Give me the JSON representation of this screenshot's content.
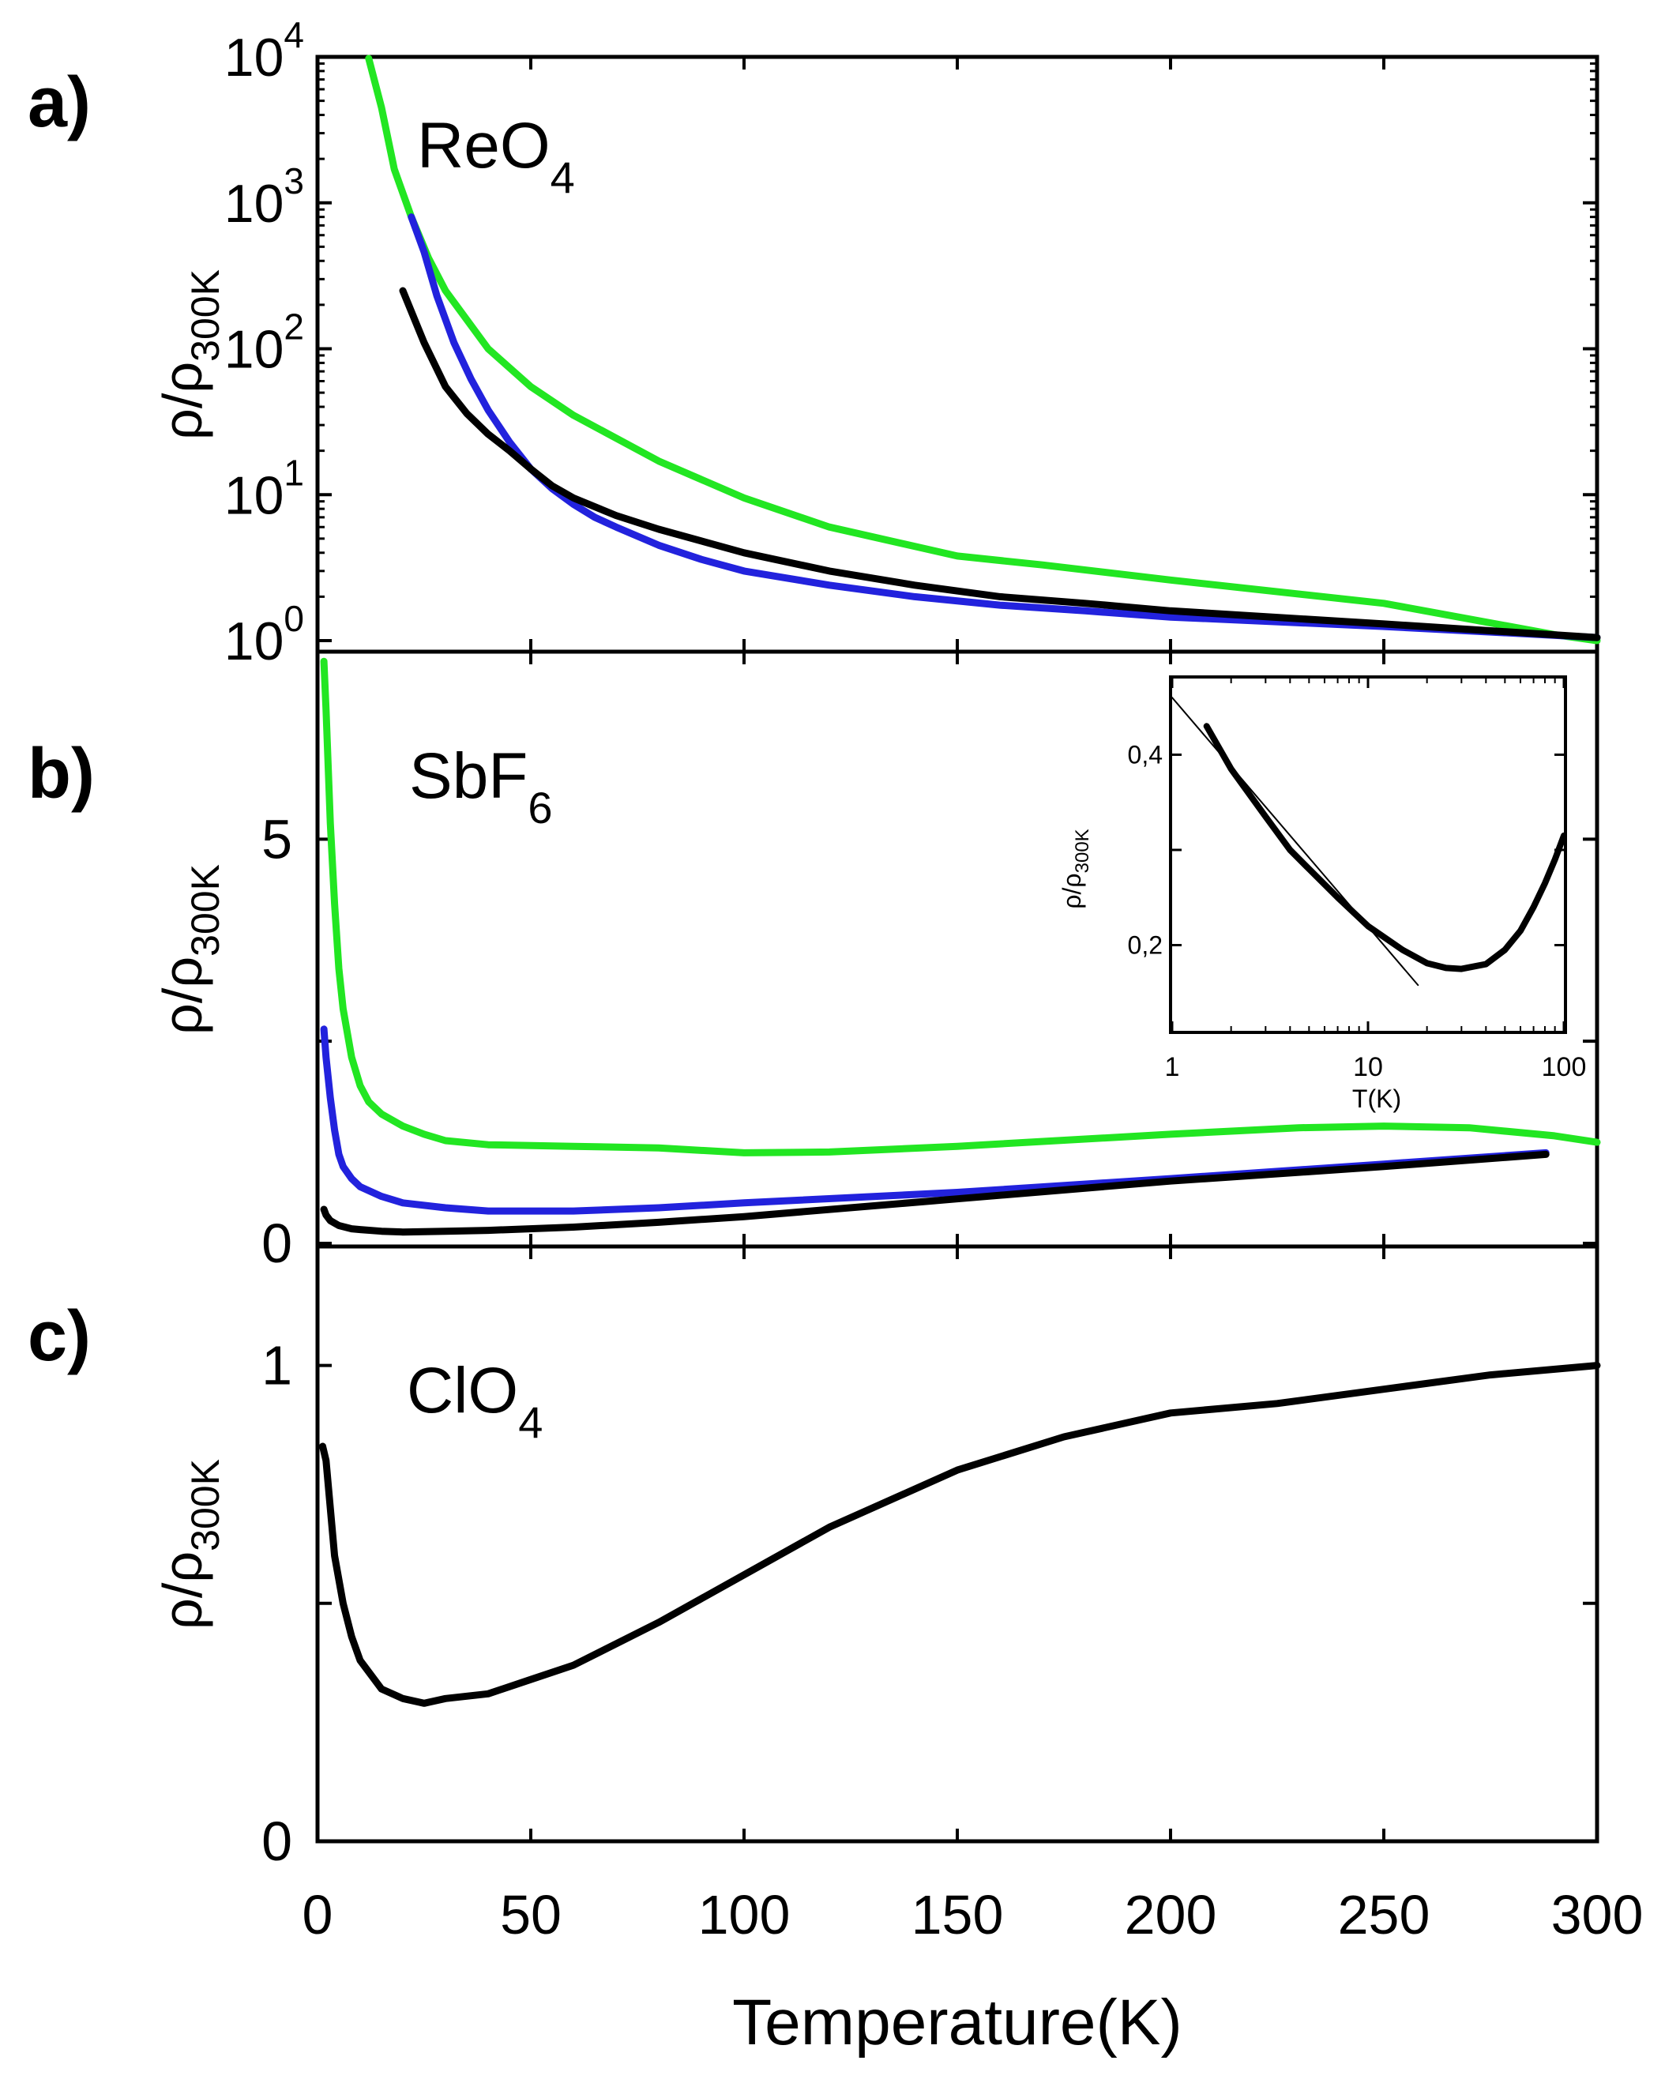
{
  "figure": {
    "xlabel": "Temperature(K)",
    "x_ticks": [
      "0",
      "50",
      "100",
      "150",
      "200",
      "250",
      "300"
    ],
    "ylabel_main": "ρ/ρ",
    "ylabel_sub": "300K",
    "panels": {
      "a": {
        "tag": "a)",
        "label_main": "ReO",
        "label_sub": "4",
        "y_ticks": [
          {
            "base": "10",
            "exp": "0"
          },
          {
            "base": "10",
            "exp": "1"
          },
          {
            "base": "10",
            "exp": "2"
          },
          {
            "base": "10",
            "exp": "3"
          },
          {
            "base": "10",
            "exp": "4"
          }
        ]
      },
      "b": {
        "tag": "b)",
        "label_main": "SbF",
        "label_sub": "6",
        "y_ticks": [
          "0",
          "5"
        ]
      },
      "c": {
        "tag": "c)",
        "label_main": "ClO",
        "label_sub": "4",
        "y_ticks": [
          "0",
          "1"
        ]
      },
      "inset": {
        "xlabel": "T(K)",
        "x_ticks": [
          "1",
          "10",
          "100"
        ],
        "y_ticks": [
          "0,2",
          "0,4"
        ],
        "ylabel_main": "ρ/ρ",
        "ylabel_sub": "300K"
      }
    }
  },
  "chart_data": [
    {
      "type": "line",
      "panel": "a",
      "yscale": "log",
      "xlim": [
        0,
        300
      ],
      "ylim": [
        1,
        10000
      ],
      "xlabel": "Temperature(K)",
      "ylabel": "ρ/ρ300K",
      "label": "ReO4",
      "series": [
        {
          "name": "green",
          "color": "#22e622",
          "x": [
            12,
            15,
            18,
            22,
            26,
            30,
            40,
            50,
            60,
            80,
            100,
            120,
            150,
            170,
            200,
            250,
            290,
            300
          ],
          "y": [
            10000,
            4500,
            1700,
            800,
            420,
            250,
            100,
            55,
            35,
            17,
            9.5,
            6,
            3.8,
            3.3,
            2.6,
            1.8,
            1.1,
            1.0
          ]
        },
        {
          "name": "blue",
          "color": "#2222dd",
          "x": [
            22,
            25,
            28,
            32,
            36,
            40,
            45,
            50,
            55,
            60,
            65,
            70,
            80,
            90,
            100,
            120,
            140,
            160,
            180,
            200,
            250,
            300
          ],
          "y": [
            800,
            460,
            230,
            110,
            62,
            38,
            23,
            15,
            11,
            8.6,
            7.0,
            6.0,
            4.5,
            3.6,
            3.0,
            2.4,
            2.0,
            1.75,
            1.6,
            1.45,
            1.25,
            1.05
          ]
        },
        {
          "name": "black",
          "color": "#000000",
          "x": [
            20,
            25,
            30,
            35,
            40,
            45,
            50,
            55,
            60,
            70,
            80,
            100,
            120,
            140,
            160,
            180,
            200,
            250,
            300
          ],
          "y": [
            250,
            110,
            55,
            36,
            26,
            20,
            15,
            11.5,
            9.5,
            7.2,
            5.8,
            4.0,
            3.0,
            2.4,
            2.0,
            1.8,
            1.6,
            1.3,
            1.05
          ]
        }
      ]
    },
    {
      "type": "line",
      "panel": "b",
      "xlim": [
        0,
        300
      ],
      "ylim": [
        0,
        7.3
      ],
      "xlabel": "Temperature(K)",
      "ylabel": "ρ/ρ300K",
      "label": "SbF6",
      "series": [
        {
          "name": "green",
          "color": "#22e622",
          "x": [
            1.5,
            2,
            3,
            4,
            5,
            6,
            8,
            10,
            12,
            15,
            20,
            25,
            30,
            40,
            60,
            80,
            100,
            120,
            150,
            200,
            230,
            250,
            270,
            290,
            300
          ],
          "y": [
            7.2,
            6.6,
            5.2,
            4.2,
            3.4,
            2.9,
            2.3,
            1.95,
            1.75,
            1.6,
            1.45,
            1.35,
            1.27,
            1.22,
            1.2,
            1.18,
            1.12,
            1.13,
            1.2,
            1.35,
            1.43,
            1.45,
            1.43,
            1.33,
            1.25
          ]
        },
        {
          "name": "blue",
          "color": "#2222dd",
          "x": [
            1.5,
            2,
            3,
            4,
            5,
            6,
            8,
            10,
            15,
            20,
            30,
            40,
            60,
            80,
            100,
            150,
            200,
            250,
            288
          ],
          "y": [
            2.65,
            2.3,
            1.8,
            1.4,
            1.1,
            0.95,
            0.8,
            0.7,
            0.58,
            0.5,
            0.44,
            0.4,
            0.4,
            0.44,
            0.5,
            0.63,
            0.8,
            0.98,
            1.12
          ]
        },
        {
          "name": "black",
          "color": "#000000",
          "x": [
            1.5,
            2,
            3,
            5,
            8,
            10,
            15,
            20,
            30,
            40,
            60,
            80,
            100,
            150,
            200,
            250,
            288
          ],
          "y": [
            0.42,
            0.35,
            0.28,
            0.22,
            0.18,
            0.17,
            0.15,
            0.14,
            0.15,
            0.16,
            0.2,
            0.26,
            0.33,
            0.55,
            0.77,
            0.95,
            1.1
          ]
        }
      ]
    },
    {
      "type": "line",
      "panel": "c",
      "xlim": [
        0,
        300
      ],
      "ylim": [
        0,
        1.25
      ],
      "xlabel": "Temperature(K)",
      "ylabel": "ρ/ρ300K",
      "label": "ClO4",
      "series": [
        {
          "name": "black",
          "color": "#000000",
          "x": [
            1.2,
            2,
            3,
            4,
            6,
            8,
            10,
            15,
            20,
            25,
            30,
            40,
            50,
            60,
            80,
            100,
            120,
            150,
            175,
            200,
            225,
            250,
            275,
            300
          ],
          "y": [
            0.83,
            0.8,
            0.7,
            0.6,
            0.5,
            0.43,
            0.38,
            0.32,
            0.3,
            0.29,
            0.3,
            0.31,
            0.34,
            0.37,
            0.46,
            0.56,
            0.66,
            0.78,
            0.85,
            0.9,
            0.92,
            0.95,
            0.98,
            1.0
          ]
        }
      ]
    },
    {
      "type": "line",
      "panel": "inset",
      "xscale": "log",
      "xlim": [
        1,
        100
      ],
      "ylim": [
        0.11,
        0.48
      ],
      "xlabel": "T(K)",
      "ylabel": "ρ/ρ300K",
      "series": [
        {
          "name": "data",
          "color": "#000000",
          "x": [
            1.5,
            2,
            3,
            4,
            5,
            7,
            10,
            15,
            20,
            25,
            30,
            40,
            50,
            60,
            70,
            80,
            90,
            100
          ],
          "y": [
            0.43,
            0.385,
            0.335,
            0.3,
            0.28,
            0.25,
            0.22,
            0.195,
            0.181,
            0.176,
            0.175,
            0.18,
            0.195,
            0.215,
            0.24,
            0.265,
            0.29,
            0.315
          ]
        },
        {
          "name": "fit",
          "color": "#000000",
          "x": [
            1,
            18
          ],
          "y": [
            0.46,
            0.158
          ]
        }
      ]
    }
  ]
}
